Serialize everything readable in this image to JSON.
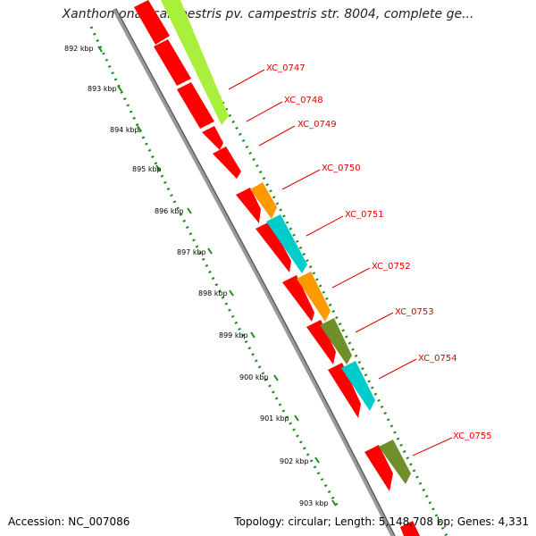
{
  "title": "Xanthomonas campestris pv. campestris str. 8004, complete ge...",
  "footer": {
    "accession": "Accession: NC_007086",
    "topology": "Topology: circular; Length: 5,148,708 bp; Genes: 4,331"
  },
  "colors": {
    "red_gene": "#ff0000",
    "lime_gene": "#a8f03c",
    "orange_gene": "#ff9900",
    "cyan_gene": "#00cccc",
    "olive_gene": "#6e8f2a",
    "label_text": "#e00000",
    "scale_dots": "#1a8c1a",
    "backbone": "#888888"
  },
  "scale_labels": [
    "892 kbp",
    "893 kbp",
    "894 kbp",
    "895 kbp",
    "896 kbp",
    "897 kbp",
    "898 kbp",
    "899 kbp",
    "900 kbp",
    "901 kbp",
    "902 kbp",
    "903 kbp"
  ],
  "gene_labels": [
    "XC_0747",
    "XC_0748",
    "XC_0749",
    "XC_0750",
    "XC_0751",
    "XC_0752",
    "XC_0753",
    "XC_0754",
    "XC_0755"
  ]
}
